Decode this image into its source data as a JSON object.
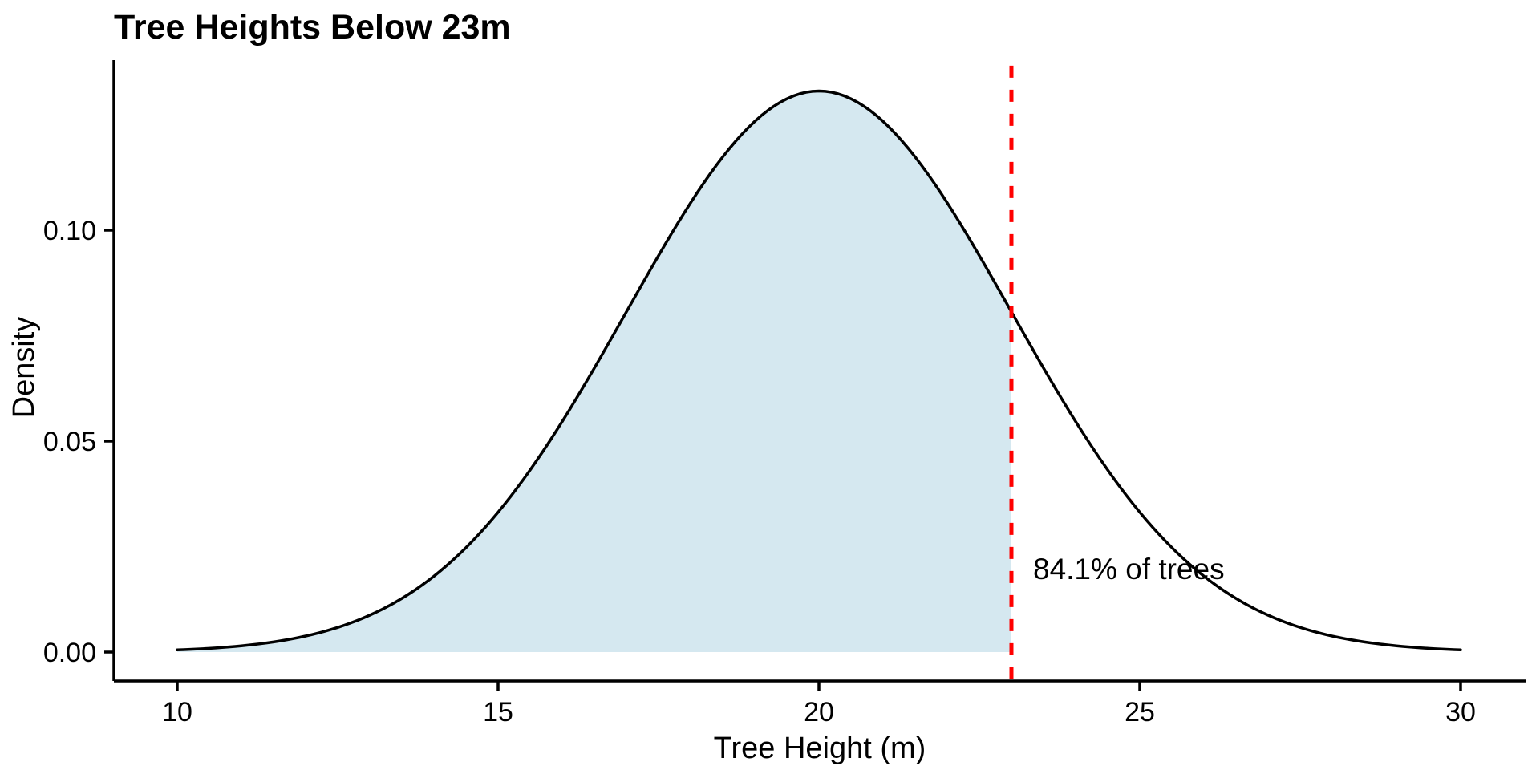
{
  "chart_data": {
    "type": "area",
    "title": "Tree Heights Below 23m",
    "xlabel": "Tree Height (m)",
    "ylabel": "Density",
    "grid": false,
    "legend": null,
    "x_range": [
      10,
      30
    ],
    "ylim": [
      0,
      0.139
    ],
    "x_ticks": [
      {
        "value": 10,
        "label": "10"
      },
      {
        "value": 15,
        "label": "15"
      },
      {
        "value": 20,
        "label": "20"
      },
      {
        "value": 25,
        "label": "25"
      },
      {
        "value": 30,
        "label": "30"
      }
    ],
    "y_ticks": [
      {
        "value": 0.0,
        "label": "0.00"
      },
      {
        "value": 0.05,
        "label": "0.05"
      },
      {
        "value": 0.1,
        "label": "0.10"
      }
    ],
    "distribution": {
      "family": "normal",
      "mean": 20,
      "sd": 3
    },
    "threshold": {
      "x": 23,
      "label": "84.1% of trees",
      "probability_below": 0.841,
      "line_style": "dashed"
    },
    "shaded_region": {
      "from": 10,
      "to": 23
    },
    "curve_points": {
      "x": [
        10,
        11,
        12,
        13,
        14,
        15,
        16,
        17,
        18,
        19,
        20,
        21,
        22,
        23,
        24,
        25,
        26,
        27,
        28,
        29,
        30
      ],
      "density": [
        0.00051,
        0.00148,
        0.0038,
        0.00874,
        0.018,
        0.03316,
        0.05467,
        0.08066,
        0.10648,
        0.12579,
        0.13298,
        0.12579,
        0.10648,
        0.08066,
        0.05467,
        0.03316,
        0.018,
        0.00874,
        0.0038,
        0.00148,
        0.00051
      ]
    },
    "colors": {
      "curve": "#000000",
      "fill": "#d5e8f0",
      "threshold_line": "#ff0000",
      "axis": "#000000",
      "text": "#000000",
      "background": "#ffffff"
    }
  }
}
